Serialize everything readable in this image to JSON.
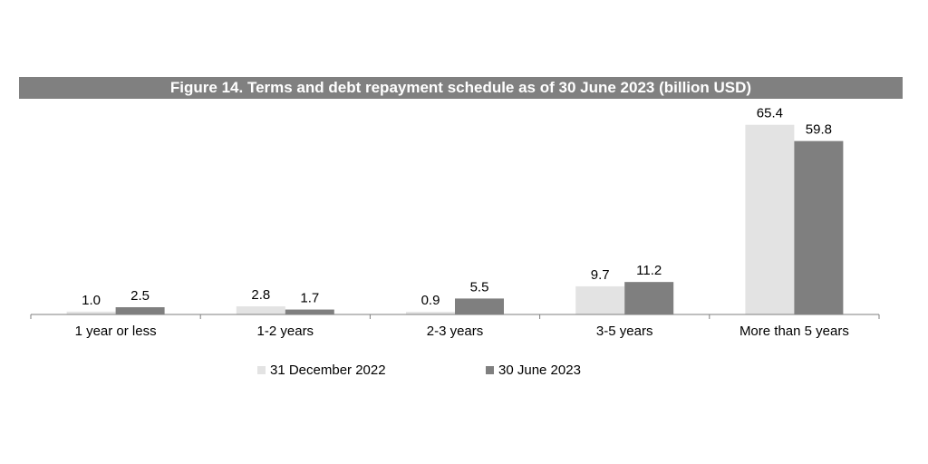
{
  "chart_data": {
    "type": "bar",
    "title": "Figure 14. Terms and debt repayment schedule as of 30 June 2023 (billion USD)",
    "categories": [
      "1 year or less",
      "1-2 years",
      "2-3 years",
      "3-5 years",
      "More than 5 years"
    ],
    "series": [
      {
        "name": "31 December 2022",
        "color": "#e3e3e3",
        "values": [
          1.0,
          2.8,
          0.9,
          9.7,
          65.4
        ],
        "labels": [
          "1.0",
          "2.8",
          "0.9",
          "9.7",
          "65.4"
        ]
      },
      {
        "name": "30 June 2023",
        "color": "#7f7f7f",
        "values": [
          2.5,
          1.7,
          5.5,
          11.2,
          59.8
        ],
        "labels": [
          "2.5",
          "1.7",
          "5.5",
          "11.2",
          "59.8"
        ]
      }
    ],
    "ylim": [
      0,
      70
    ],
    "grid": false,
    "legend_position": "bottom"
  }
}
